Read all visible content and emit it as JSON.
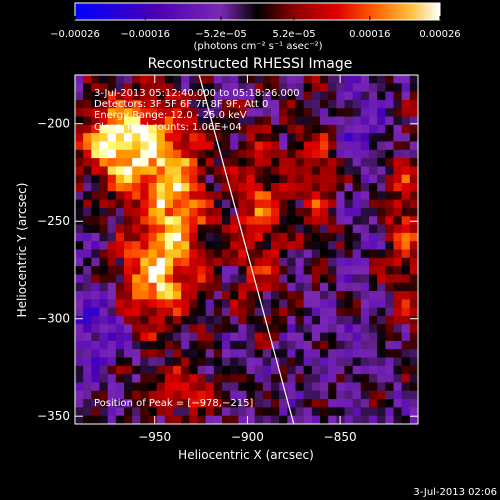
{
  "chart_data": {
    "type": "heatmap",
    "title": "Reconstructed RHESSI Image",
    "xlabel": "Heliocentric X (arcsec)",
    "ylabel": "Heliocentric Y (arcsec)",
    "xlim": [
      -993,
      -808
    ],
    "ylim": [
      -354,
      -175
    ],
    "x_ticks": [
      -950,
      -900,
      -850
    ],
    "y_ticks": [
      -200,
      -250,
      -300,
      -350
    ],
    "x_tick_labels": [
      "−950",
      "−900",
      "−850"
    ],
    "y_tick_labels": [
      "−200",
      "−250",
      "−300",
      "−350"
    ],
    "colorbar": {
      "tick_labels": [
        "−0.00026",
        "−0.00016",
        "−5.2e−05",
        "5.2e−05",
        "0.00016",
        "0.00026"
      ],
      "tick_values": [
        -0.00026,
        -0.00016,
        -5.2e-05,
        5.2e-05,
        0.00016,
        0.00026
      ],
      "range": [
        -0.00026,
        0.00026
      ],
      "unit_label": "(photons cm⁻² s⁻¹ asec⁻²)"
    },
    "annotations": [
      "3-Jul-2013 05:12:40.000 to 05:18:26.000",
      "Detectors: 3F 5F 6F 7F 8F 9F, Att 0",
      "Energy Range: 12.0 - 25.0 keV",
      "Clean     Total counts: 1.06E+04"
    ],
    "peak_label": "Position of Peak = [−978,−215]",
    "peak_position": [
      -978,
      -215
    ],
    "limb_line": {
      "x": [
        -926,
        -875
      ],
      "y": [
        -175,
        -354
      ]
    }
  },
  "footer_date": "3-Jul-2013 02:06",
  "colors": {
    "background": "#000000",
    "text": "#ffffff",
    "colormap": [
      "#0000ff",
      "#4b00b4",
      "#7b28b4",
      "#000000",
      "#8c0000",
      "#e10000",
      "#ff5a00",
      "#ffaa00",
      "#ffff78",
      "#ffffff"
    ]
  }
}
